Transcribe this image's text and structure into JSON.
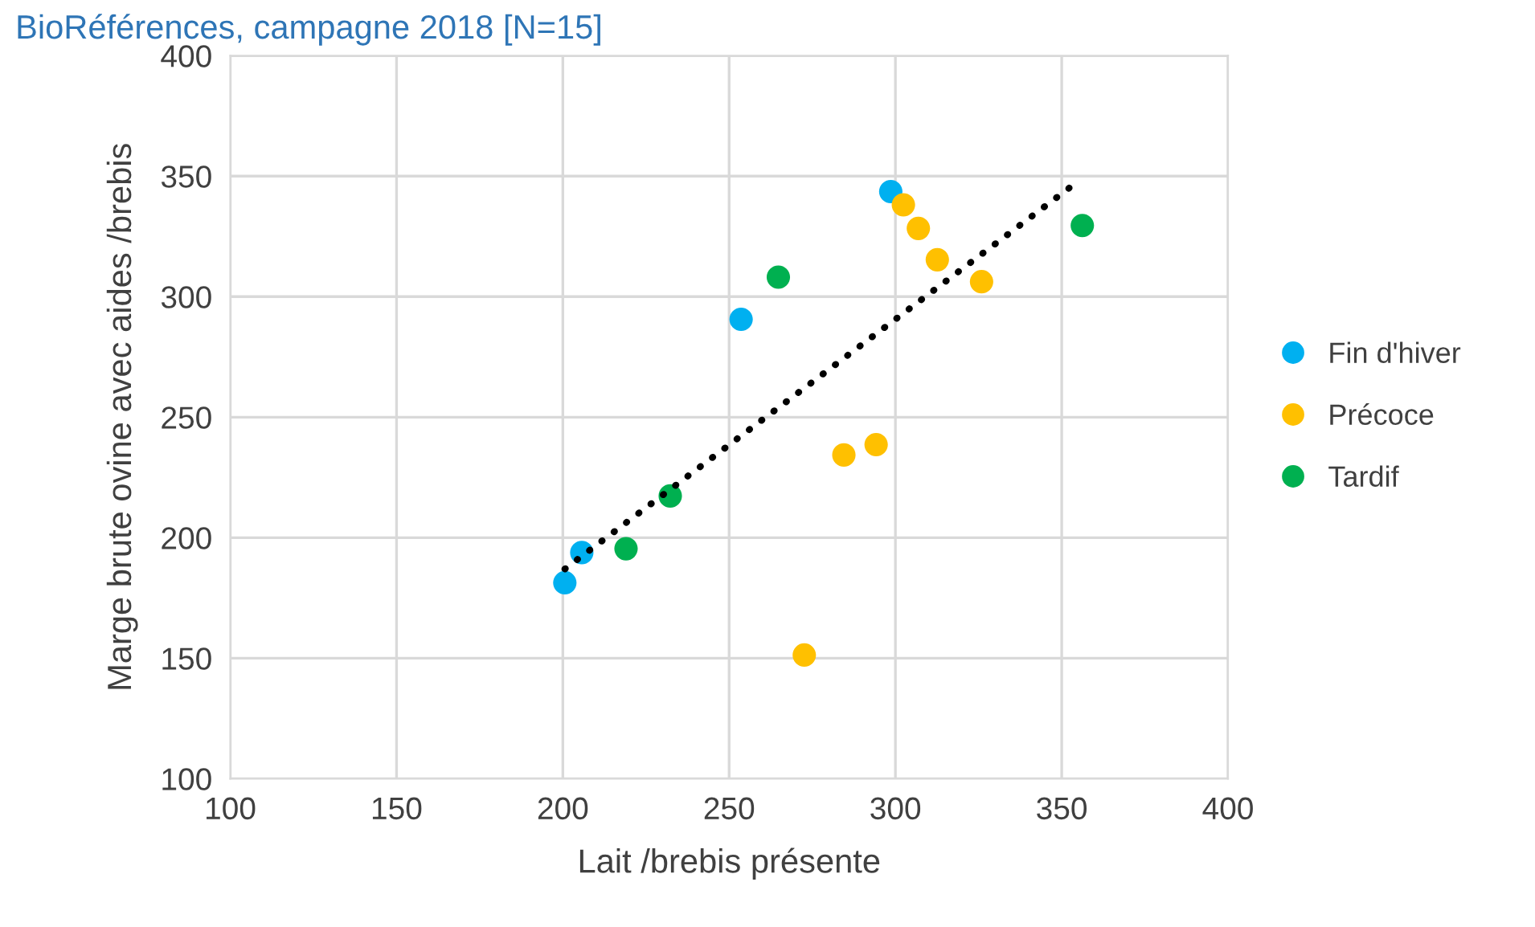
{
  "chart_data": {
    "type": "scatter",
    "title": "BioRéférences, campagne 2018 [N=15]",
    "xlabel": "Lait /brebis présente",
    "ylabel": "Marge brute ovine avec aides /brebis",
    "xlim": [
      100,
      400
    ],
    "xticks": [
      100,
      150,
      200,
      250,
      300,
      350,
      400
    ],
    "ylim": [
      100,
      400
    ],
    "yticks": [
      100,
      150,
      200,
      250,
      300,
      350,
      400
    ],
    "grid": true,
    "legend": "right",
    "marker": "circle",
    "series": [
      {
        "name": "Fin d'hiver",
        "color": "#00b0f0",
        "x": [
          298.6,
          253.6,
          205.7,
          200.6
        ],
        "values": [
          343.6,
          290.6,
          193.8,
          181.3
        ]
      },
      {
        "name": "Précoce",
        "color": "#ffc000",
        "x": [
          302.4,
          306.9,
          312.6,
          325.9,
          284.5,
          294.2,
          272.6
        ],
        "values": [
          338.1,
          328.3,
          315.3,
          306.2,
          234.3,
          238.6,
          151.3
        ]
      },
      {
        "name": "Tardif",
        "color": "#00b050",
        "x": [
          264.8,
          356.2,
          232.3,
          219.0
        ],
        "values": [
          308.1,
          329.5,
          217.3,
          195.4
        ]
      },
      {
        "type": "line",
        "color": "#000000",
        "line_style": "dotted",
        "marker": "none",
        "x": [
          200.6,
          354.3
        ],
        "values": [
          187,
          347.2
        ]
      }
    ]
  }
}
